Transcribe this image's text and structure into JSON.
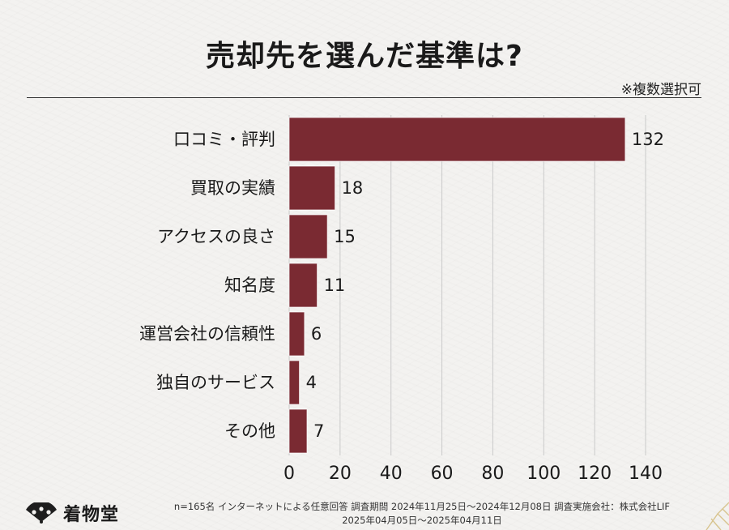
{
  "title": "売却先を選んだ基準は?",
  "note": "※複数選択可",
  "footer": {
    "line1": "n=165名 インターネットによる任意回答 調査期間 2024年11月25日〜2024年12月08日 調査実施会社：株式会社LIF",
    "line2": "2025年04月05日〜2025年04月11日"
  },
  "logo": {
    "text": "着物堂"
  },
  "colors": {
    "bar": "#7a2a32",
    "grid": "#c9c9c9",
    "text": "#1a1a1a"
  },
  "chart_data": {
    "type": "bar",
    "orientation": "horizontal",
    "categories": [
      "口コミ・評判",
      "買取の実績",
      "アクセスの良さ",
      "知名度",
      "運営会社の信頼性",
      "独自のサービス",
      "その他"
    ],
    "values": [
      132,
      18,
      15,
      11,
      6,
      4,
      7
    ],
    "xlim": [
      0,
      140
    ],
    "xticks": [
      0,
      20,
      40,
      60,
      80,
      100,
      120,
      140
    ],
    "grid": true,
    "data_labels": true
  }
}
